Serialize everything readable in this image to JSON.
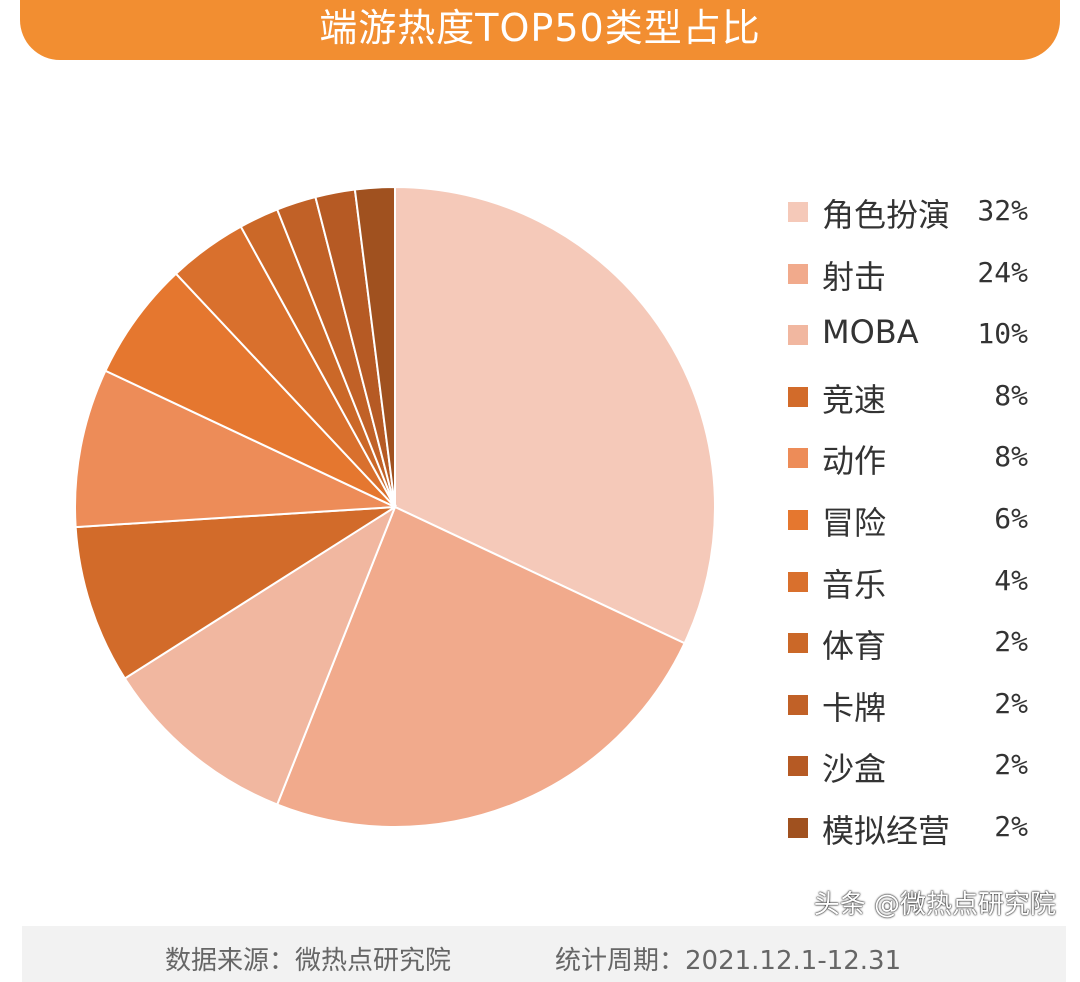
{
  "header": {
    "title": "端游热度TOP50类型占比"
  },
  "chart_data": {
    "type": "pie",
    "title": "端游热度TOP50类型占比",
    "start_angle": "12 o'clock",
    "direction": "clockwise",
    "legend_position": "right",
    "slices": [
      {
        "label": "角色扮演",
        "value": 32,
        "value_label": "32%",
        "color": "#F5C9B9"
      },
      {
        "label": "射击",
        "value": 24,
        "value_label": "24%",
        "color": "#F1AA8C"
      },
      {
        "label": "MOBA",
        "value": 10,
        "value_label": "10%",
        "color": "#F1B7A0"
      },
      {
        "label": "竞速",
        "value": 8,
        "value_label": "8%",
        "color": "#D26B2A"
      },
      {
        "label": "动作",
        "value": 8,
        "value_label": "8%",
        "color": "#ED8C58"
      },
      {
        "label": "冒险",
        "value": 6,
        "value_label": "6%",
        "color": "#E5772F"
      },
      {
        "label": "音乐",
        "value": 4,
        "value_label": "4%",
        "color": "#D9702D"
      },
      {
        "label": "体育",
        "value": 2,
        "value_label": "2%",
        "color": "#CB6828"
      },
      {
        "label": "卡牌",
        "value": 2,
        "value_label": "2%",
        "color": "#C16127"
      },
      {
        "label": "沙盒",
        "value": 2,
        "value_label": "2%",
        "color": "#B65A24"
      },
      {
        "label": "模拟经营",
        "value": 2,
        "value_label": "2%",
        "color": "#A0511F"
      }
    ]
  },
  "footer": {
    "source": "数据来源：微热点研究院",
    "period": "统计周期：2021.12.1-12.31",
    "watermark": "头条 @微热点研究院"
  }
}
